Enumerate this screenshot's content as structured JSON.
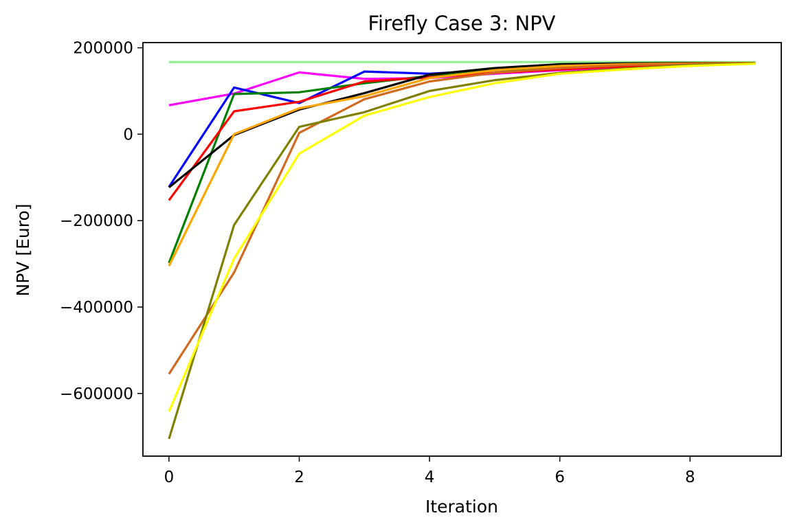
{
  "chart_data": {
    "type": "line",
    "title": "Firefly Case 3: NPV",
    "xlabel": "Iteration",
    "ylabel": "NPV [Euro]",
    "xlim": [
      -0.4,
      9.4
    ],
    "ylim": [
      -745000,
      212000
    ],
    "xticks": [
      0,
      2,
      4,
      6,
      8
    ],
    "yticks": [
      200000,
      0,
      -200000,
      -400000,
      -600000
    ],
    "ytick_labels": [
      "200000",
      "0",
      "−200000",
      "−400000",
      "−600000"
    ],
    "grid": false,
    "x": [
      0,
      1,
      2,
      3,
      4,
      5,
      6,
      7,
      8,
      9
    ],
    "series": [
      {
        "color": "#90ee90",
        "values": [
          167000,
          167000,
          167000,
          167000,
          167000,
          167000,
          167000,
          167000,
          167000,
          167000
        ]
      },
      {
        "color": "#ff00ff",
        "values": [
          67000,
          94000,
          143000,
          128000,
          130000,
          140000,
          148000,
          155000,
          160000,
          164000
        ]
      },
      {
        "color": "#0000ff",
        "values": [
          -122000,
          108000,
          72000,
          145000,
          140000,
          148000,
          154000,
          159000,
          162000,
          164000
        ]
      },
      {
        "color": "#008000",
        "values": [
          -298000,
          93000,
          97000,
          118000,
          135000,
          148000,
          155000,
          160000,
          163000,
          164000
        ]
      },
      {
        "color": "#ff0000",
        "values": [
          -153000,
          53000,
          75000,
          122000,
          132000,
          142000,
          150000,
          157000,
          161000,
          164000
        ]
      },
      {
        "color": "#000000",
        "values": [
          -123000,
          -2000,
          57000,
          95000,
          138000,
          153000,
          162000,
          164000,
          165000,
          165000
        ]
      },
      {
        "color": "#ffa500",
        "values": [
          -305000,
          0,
          60000,
          88000,
          130000,
          148000,
          158000,
          162000,
          164000,
          165000
        ]
      },
      {
        "color": "#d2691e",
        "values": [
          -555000,
          -320000,
          3000,
          81000,
          122000,
          142000,
          153000,
          160000,
          163000,
          165000
        ]
      },
      {
        "color": "#808000",
        "values": [
          -705000,
          -210000,
          17000,
          51000,
          100000,
          125000,
          142000,
          152000,
          160000,
          164000
        ]
      },
      {
        "color": "#ffff00",
        "values": [
          -642000,
          -288000,
          -45000,
          43000,
          86000,
          118000,
          140000,
          150000,
          158000,
          163000
        ]
      }
    ]
  }
}
